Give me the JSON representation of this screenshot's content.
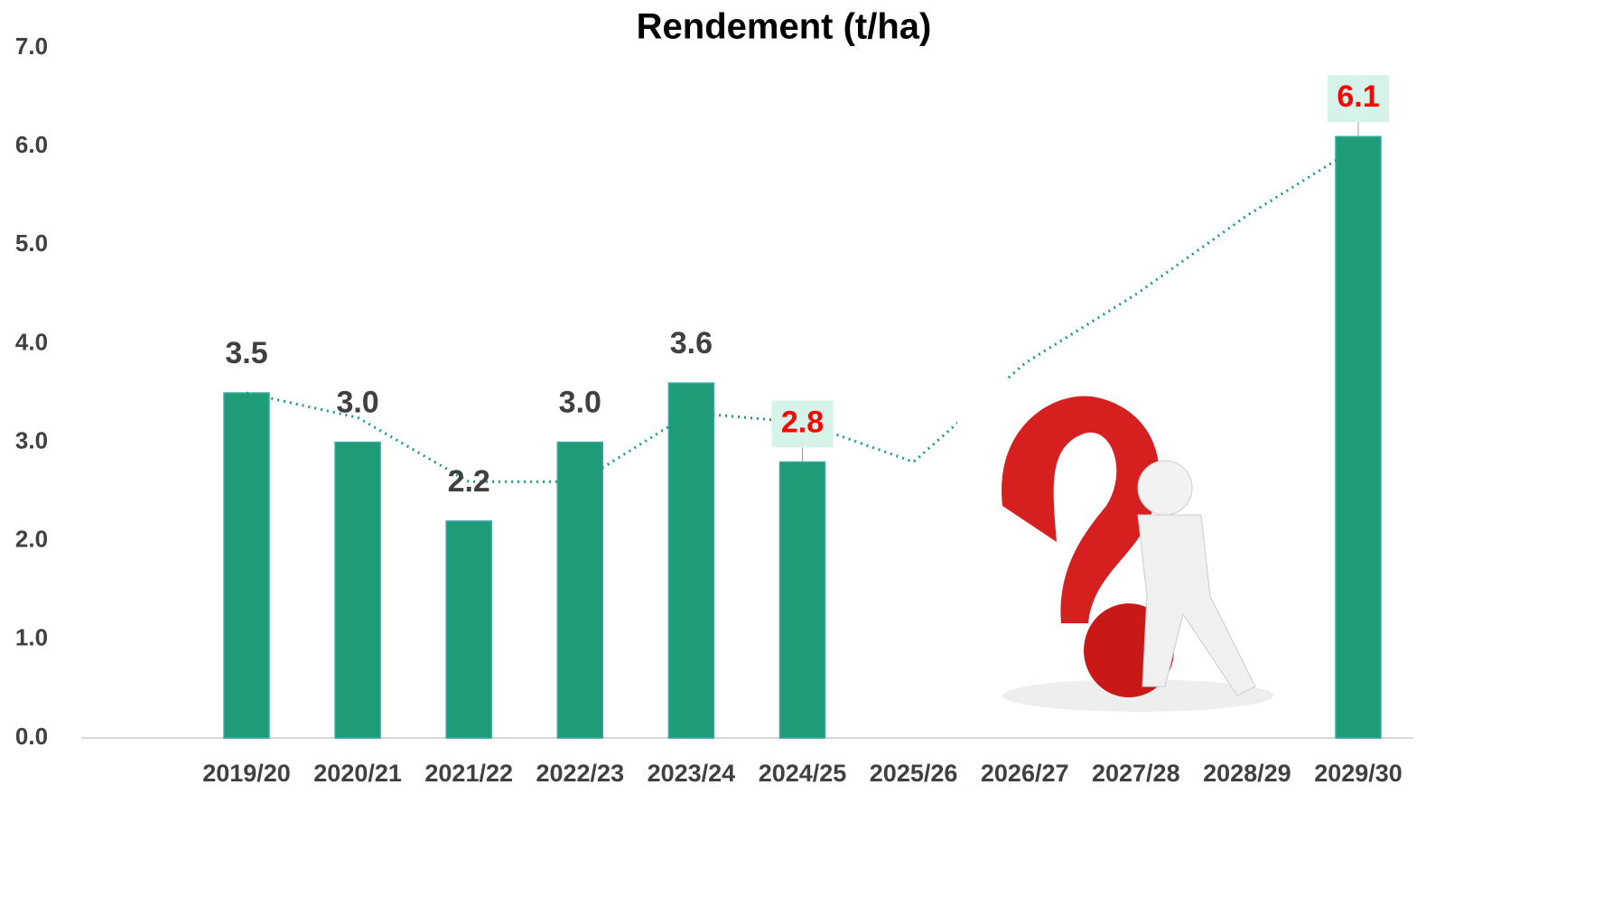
{
  "chart_data": {
    "type": "bar",
    "title": "Rendement (t/ha)",
    "categories": [
      "2019/20",
      "2020/21",
      "2021/22",
      "2022/23",
      "2023/24",
      "2024/25",
      "2025/26",
      "2026/27",
      "2027/28",
      "2028/29",
      "2029/30"
    ],
    "values": [
      3.5,
      3.0,
      2.2,
      3.0,
      3.6,
      2.8,
      null,
      null,
      null,
      null,
      6.1
    ],
    "value_labels": [
      "3.5",
      "3.0",
      "2.2",
      "3.0",
      "3.6",
      "2.8",
      null,
      null,
      null,
      null,
      "6.1"
    ],
    "color": "#1e9c78",
    "highlighted_labels": [
      5,
      10
    ],
    "highlight_color": "#ff0000",
    "trendline": {
      "color": "#1e9c78",
      "values": [
        3.5,
        3.25,
        2.6,
        2.6,
        3.3,
        3.2,
        2.8,
        3.8,
        4.5,
        5.3,
        6.0
      ]
    },
    "ylim": [
      0,
      7
    ],
    "yticks": [
      {
        "value": 0,
        "label": "0.0"
      },
      {
        "value": 1,
        "label": "1.0"
      },
      {
        "value": 2,
        "label": "2.0"
      },
      {
        "value": 3,
        "label": "3.0"
      },
      {
        "value": 4,
        "label": "4.0"
      },
      {
        "value": 5,
        "label": "5.0"
      },
      {
        "value": 6,
        "label": "6.0"
      },
      {
        "value": 7,
        "label": "7.0"
      }
    ],
    "grid": false
  }
}
